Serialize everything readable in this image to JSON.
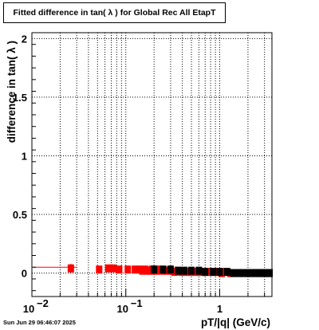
{
  "footer": {
    "timestamp": "Sun Jun 29 06:46:07 2025"
  },
  "chart_data": {
    "type": "scatter",
    "title": "Fitted difference in tan( λ ) for Global Rec All EtapT",
    "xlabel": "pT/|q| (GeV/c)",
    "ylabel": "difference in tan( λ )",
    "x_scale": "log",
    "xlim": [
      0.01,
      3.6
    ],
    "ylim": [
      -0.2,
      2.05
    ],
    "x_ticks": [
      {
        "value": 0.01,
        "label": "10",
        "exp": "−2"
      },
      {
        "value": 0.1,
        "label": "10",
        "exp": "−1"
      },
      {
        "value": 1,
        "label": "1",
        "exp": ""
      }
    ],
    "y_ticks": [
      {
        "value": 0,
        "label": "0"
      },
      {
        "value": 0.5,
        "label": "0.5"
      },
      {
        "value": 1,
        "label": "1"
      },
      {
        "value": 1.5,
        "label": "1.5"
      },
      {
        "value": 2,
        "label": "2"
      }
    ],
    "grid": true,
    "colors": {
      "red": "#ff0000",
      "black": "#000000"
    },
    "series": [
      {
        "color": "#ff0000",
        "marker": "rect",
        "x": [
          0.026,
          0.052,
          0.065,
          0.073,
          0.085,
          0.105,
          0.125,
          0.14,
          0.15,
          0.16,
          0.17,
          0.18,
          0.19,
          0.2,
          0.21,
          0.22,
          0.24,
          0.26,
          0.28,
          0.3,
          0.33,
          0.36,
          0.39,
          0.42,
          0.46,
          0.5,
          0.55,
          0.6,
          0.66,
          0.72,
          0.8,
          0.88,
          0.96,
          1.05,
          1.15,
          1.3
        ],
        "y": [
          0.04,
          0.03,
          0.04,
          0.04,
          0.03,
          0.03,
          0.03,
          0.03,
          0.02,
          0.03,
          0.02,
          0.02,
          0.03,
          0.02,
          0.02,
          0.03,
          0.02,
          0.02,
          0.02,
          0.02,
          0.01,
          0.02,
          0.01,
          0.01,
          0.01,
          0.01,
          0.01,
          0.01,
          0.01,
          0.01,
          0.01,
          0.01,
          0.01,
          0.0,
          0.01,
          0.0
        ],
        "yerr": [
          0.04,
          0.03,
          0.03,
          0.03,
          0.03,
          0.03,
          0.02,
          0.02,
          0.02,
          0.02,
          0.02,
          0.02,
          0.02,
          0.02,
          0.02,
          0.02,
          0.02,
          0.02,
          0.02,
          0.01,
          0.01,
          0.01,
          0.01,
          0.01,
          0.01,
          0.01,
          0.01,
          0.01,
          0.01,
          0.01,
          0.01,
          0.01,
          0.01,
          0.01,
          0.01,
          0.01
        ],
        "xerr_line": {
          "from": 0.0104,
          "to": 0.03,
          "y": 0.05
        }
      },
      {
        "color": "#000000",
        "marker": "rect",
        "x": [
          0.2,
          0.25,
          0.3,
          0.36,
          0.42,
          0.5,
          0.6,
          0.7,
          0.85,
          1.0,
          1.2,
          1.4,
          1.6,
          1.8,
          2.0,
          2.2,
          2.4,
          2.6,
          2.8,
          3.0,
          3.2,
          3.4
        ],
        "y": [
          0.03,
          0.03,
          0.03,
          0.02,
          0.02,
          0.02,
          0.02,
          0.01,
          0.01,
          0.01,
          0.01,
          0.0,
          0.0,
          0.0,
          0.0,
          0.0,
          0.0,
          0.0,
          0.0,
          0.0,
          0.0,
          0.0
        ],
        "yerr": [
          0.02,
          0.02,
          0.02,
          0.02,
          0.02,
          0.02,
          0.01,
          0.01,
          0.01,
          0.01,
          0.01,
          0.01,
          0.01,
          0.01,
          0.01,
          0.01,
          0.01,
          0.01,
          0.01,
          0.01,
          0.01,
          0.01
        ]
      }
    ]
  }
}
